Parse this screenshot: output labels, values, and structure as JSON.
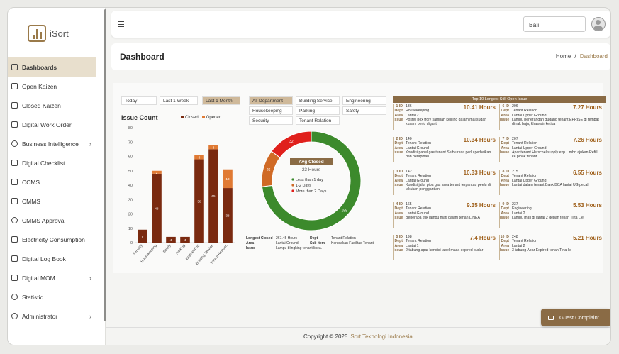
{
  "app": {
    "name": "iSort"
  },
  "sidebar": {
    "items": [
      {
        "label": "Dashboards",
        "icon": "monitor-icon",
        "active": true
      },
      {
        "label": "Open Kaizen",
        "icon": "kaizen-icon"
      },
      {
        "label": "Closed Kaizen",
        "icon": "kaizen-closed-icon"
      },
      {
        "label": "Digital Work Order",
        "icon": "calendar-icon"
      },
      {
        "label": "Business Intelligence",
        "icon": "pie-icon",
        "chevron": true
      },
      {
        "label": "Digital Checklist",
        "icon": "calendar-icon"
      },
      {
        "label": "CCMS",
        "icon": "calendar-icon"
      },
      {
        "label": "CMMS",
        "icon": "calendar-icon"
      },
      {
        "label": "CMMS Approval",
        "icon": "check-circle-icon"
      },
      {
        "label": "Electricity Consumption",
        "icon": "calendar-icon"
      },
      {
        "label": "Digital Log Book",
        "icon": "calendar-icon"
      },
      {
        "label": "Digital MOM",
        "icon": "calendar-icon",
        "chevron": true
      },
      {
        "label": "Statistic",
        "icon": "pie-icon"
      },
      {
        "label": "Administrator",
        "icon": "gear-icon",
        "chevron": true
      }
    ]
  },
  "topbar": {
    "location": "Bali"
  },
  "header": {
    "title": "Dashboard",
    "crumb_home": "Home",
    "crumb_sep": "/",
    "crumb_current": "Dashboard"
  },
  "filters": {
    "time": [
      {
        "label": "Today"
      },
      {
        "label": "Last 1 Week"
      },
      {
        "label": "Last 1 Month",
        "selected": true
      }
    ],
    "departments": [
      {
        "label": "All Department",
        "selected": true
      },
      {
        "label": "Building Service"
      },
      {
        "label": "Engineering"
      },
      {
        "label": "Housekeeping"
      },
      {
        "label": "Parking"
      },
      {
        "label": "Safety"
      },
      {
        "label": "Security"
      },
      {
        "label": "Tenant Relation"
      }
    ]
  },
  "colors": {
    "accent": "#8a6b45",
    "closed": "#7a2a10",
    "opened": "#e07a34",
    "donut_green": "#3c8a2c",
    "donut_orange": "#d06a26",
    "donut_red": "#e0201c"
  },
  "chart_data": [
    {
      "type": "bar",
      "title": "Issue Count",
      "categories": [
        "Security",
        "Housekeeping",
        "Safety",
        "Parking",
        "Engineering",
        "Building Service",
        "Tenant Relation"
      ],
      "series": [
        {
          "name": "Closed",
          "values": [
            9,
            48,
            4,
            4,
            58,
            65,
            38
          ]
        },
        {
          "name": "Opened",
          "values": [
            0,
            2,
            0,
            0,
            3,
            3,
            13
          ]
        }
      ],
      "ylim": [
        0,
        80
      ],
      "yticks": [
        0,
        10,
        20,
        30,
        40,
        50,
        60,
        70,
        80
      ],
      "legend": "top-right"
    },
    {
      "type": "pie",
      "title": "",
      "labels": [
        "Less than 1 day",
        "1-2 Days",
        "More than 2 Days"
      ],
      "values": [
        158,
        26,
        32
      ],
      "center_title": "Avg Closed",
      "center_value": "23 Hours"
    }
  ],
  "longest_closed": {
    "k1": "Longest Closed",
    "v1": "267.45 Hours",
    "k2": "Dept",
    "v2": "Tenant Relation",
    "k3": "Area",
    "v3": "Lantai Ground",
    "k4": "Sub Item",
    "v4": "Kerusakan Fasilitas Tenant",
    "k5": "Issue",
    "v5": "Lampu blingking tenant linea."
  },
  "open_issues": {
    "title": "Top 10 Longest Still Open Issue",
    "labels": {
      "id": "ID",
      "dept": "Dept",
      "area": "Area",
      "issue": "Issue"
    },
    "items": [
      {
        "rank": "1",
        "id": "136",
        "hours": "10.41 Hours",
        "dept": "Housekeeping",
        "area": "Lantai 2",
        "issue": "Poster box troly sampah keliling dalam mal sudah kusam perlu diganti"
      },
      {
        "rank": "2",
        "id": "140",
        "hours": "10.34 Hours",
        "dept": "Tenant Relation",
        "area": "Lantai Ground",
        "issue": "Kondisi panel gas tenant Seibu rasa perlu perbaikan dan perapihan"
      },
      {
        "rank": "3",
        "id": "142",
        "hours": "10.33 Hours",
        "dept": "Tenant Relation",
        "area": "Lantai Ground",
        "issue": "Kondisi jalur pipa gas area tenant terpantau peelu di lakukan penggantian."
      },
      {
        "rank": "4",
        "id": "165",
        "hours": "9.35 Hours",
        "dept": "Tenant Relation",
        "area": "Lantai Ground",
        "issue": "Beberapa titik lampu mati dalam tenan LINEA"
      },
      {
        "rank": "5",
        "id": "198",
        "hours": "7.4 Hours",
        "dept": "Tenant Relation",
        "area": "Lantai 1",
        "issue": "2 tabung apar kondisi label masa expired pudar"
      },
      {
        "rank": "6",
        "id": "206",
        "hours": "7.27 Hours",
        "dept": "Tenant Relation",
        "area": "Lantai Upper Ground",
        "issue": "Lampu penerangan gudang tenant EPRISE di tempat di rak baju, khawatir ketika"
      },
      {
        "rank": "7",
        "id": "207",
        "hours": "7.26 Hours",
        "dept": "Tenant Relation",
        "area": "Lantai Upper Ground",
        "issue": "Apar tenant Herschel supply exp... mhn ajukan Refill ke pihak tenant."
      },
      {
        "rank": "8",
        "id": "215",
        "hours": "6.55 Hours",
        "dept": "Tenant Relation",
        "area": "Lantai Upper Ground",
        "issue": "Lantai dalam tenant Bank BCA lantai UG pecah"
      },
      {
        "rank": "9",
        "id": "237",
        "hours": "5.53 Hours",
        "dept": "Engineering",
        "area": "Lantai 2",
        "issue": "Lampu mati di lantai 2 depan tenan Tirta Lie"
      },
      {
        "rank": "10",
        "id": "248",
        "hours": "5.21 Hours",
        "dept": "Tenant Relation",
        "area": "Lantai 2",
        "issue": "3 tabung Apar Expired tenan Tirta lie"
      }
    ]
  },
  "footer": {
    "prefix": "Copyright © 2025 ",
    "brand": "iSort Teknologi Indonesia",
    "suffix": "."
  },
  "guest": {
    "label": "Guest Complaint"
  }
}
